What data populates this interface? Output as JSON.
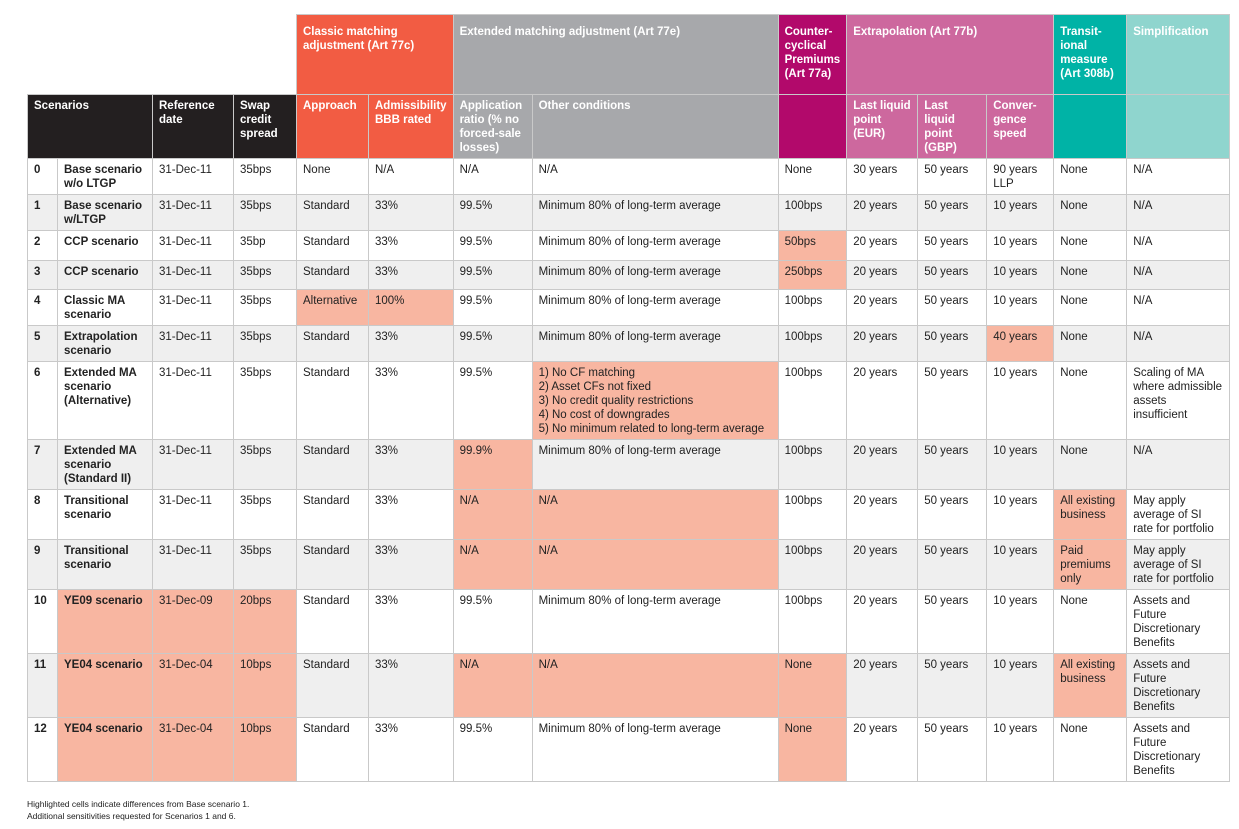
{
  "groups": {
    "classic": "Classic matching adjustment (Art 77c)",
    "extended": "Extended matching adjustment (Art 77e)",
    "ccp": "Counter-cyclical Premiums (Art 77a)",
    "extrapolation": "Extrapolation (Art 77b)",
    "transitional": "Transit-ional measure (Art 308b)",
    "simplification": "Simplification"
  },
  "columns": {
    "scenarios": "Scenarios",
    "reference_date": "Reference date",
    "swap_spread": "Swap credit spread",
    "approach": "Approach",
    "admissibility": "Admissibility BBB rated",
    "application_ratio": "Application ratio (% no forced-sale losses)",
    "other_conditions": "Other conditions",
    "llp_eur": "Last liquid point (EUR)",
    "llp_gbp": "Last liquid point (GBP)",
    "convergence": "Conver-gence speed"
  },
  "rows": [
    {
      "num": "0",
      "name": "Base scenario w/o LTGP",
      "date": "31-Dec-11",
      "spread": "35bps",
      "approach": "None",
      "bbb": "N/A",
      "ratio": "N/A",
      "other": "N/A",
      "ccp": "None",
      "eur": "30 years",
      "gbp": "50 years",
      "conv": "90 years LLP",
      "trans": "None",
      "simp": "N/A"
    },
    {
      "num": "1",
      "name": "Base scenario w/LTGP",
      "date": "31-Dec-11",
      "spread": "35bps",
      "approach": "Standard",
      "bbb": "33%",
      "ratio": "99.5%",
      "other": "Minimum 80% of long-term average",
      "ccp": "100bps",
      "eur": "20 years",
      "gbp": "50 years",
      "conv": "10 years",
      "trans": "None",
      "simp": "N/A"
    },
    {
      "num": "2",
      "name": "CCP scenario",
      "date": "31-Dec-11",
      "spread": "35bp",
      "approach": "Standard",
      "bbb": "33%",
      "ratio": "99.5%",
      "other": "Minimum 80% of long-term average",
      "ccp": "50bps",
      "eur": "20 years",
      "gbp": "50 years",
      "conv": "10 years",
      "trans": "None",
      "simp": "N/A"
    },
    {
      "num": "3",
      "name": "CCP scenario",
      "date": "31-Dec-11",
      "spread": "35bps",
      "approach": "Standard",
      "bbb": "33%",
      "ratio": "99.5%",
      "other": "Minimum 80% of long-term average",
      "ccp": "250bps",
      "eur": "20 years",
      "gbp": "50 years",
      "conv": "10 years",
      "trans": "None",
      "simp": "N/A"
    },
    {
      "num": "4",
      "name": "Classic MA scenario",
      "date": "31-Dec-11",
      "spread": "35bps",
      "approach": "Alternative",
      "bbb": "100%",
      "ratio": "99.5%",
      "other": "Minimum 80% of long-term average",
      "ccp": "100bps",
      "eur": "20 years",
      "gbp": "50 years",
      "conv": "10 years",
      "trans": "None",
      "simp": "N/A"
    },
    {
      "num": "5",
      "name": "Extrapolation scenario",
      "date": "31-Dec-11",
      "spread": "35bps",
      "approach": "Standard",
      "bbb": "33%",
      "ratio": "99.5%",
      "other": "Minimum 80% of long-term average",
      "ccp": "100bps",
      "eur": "20 years",
      "gbp": "50 years",
      "conv": "40 years",
      "trans": "None",
      "simp": "N/A"
    },
    {
      "num": "6",
      "name": "Extended MA scenario (Alternative)",
      "date": "31-Dec-11",
      "spread": "35bps",
      "approach": "Standard",
      "bbb": "33%",
      "ratio": "99.5%",
      "other": "1) No CF matching\n2) Asset CFs not fixed\n3) No credit quality restrictions\n4) No cost of downgrades\n5) No minimum related to long-term average",
      "ccp": "100bps",
      "eur": "20 years",
      "gbp": "50 years",
      "conv": "10 years",
      "trans": "None",
      "simp": "Scaling of MA where admissible assets insufficient"
    },
    {
      "num": "7",
      "name": "Extended MA scenario (Standard II)",
      "date": "31-Dec-11",
      "spread": "35bps",
      "approach": "Standard",
      "bbb": "33%",
      "ratio": "99.9%",
      "other": "Minimum 80% of long-term average",
      "ccp": "100bps",
      "eur": "20 years",
      "gbp": "50 years",
      "conv": "10 years",
      "trans": "None",
      "simp": "N/A"
    },
    {
      "num": "8",
      "name": "Transitional scenario",
      "date": "31-Dec-11",
      "spread": "35bps",
      "approach": "Standard",
      "bbb": "33%",
      "ratio": "N/A",
      "other": "N/A",
      "ccp": "100bps",
      "eur": "20 years",
      "gbp": "50 years",
      "conv": "10 years",
      "trans": "All existing business",
      "simp": "May apply average of SI rate for portfolio"
    },
    {
      "num": "9",
      "name": "Transitional scenario",
      "date": "31-Dec-11",
      "spread": "35bps",
      "approach": "Standard",
      "bbb": "33%",
      "ratio": "N/A",
      "other": "N/A",
      "ccp": "100bps",
      "eur": "20 years",
      "gbp": "50 years",
      "conv": "10 years",
      "trans": "Paid premiums only",
      "simp": "May apply average of SI rate for portfolio"
    },
    {
      "num": "10",
      "name": "YE09 scenario",
      "date": "31-Dec-09",
      "spread": "20bps",
      "approach": "Standard",
      "bbb": "33%",
      "ratio": "99.5%",
      "other": "Minimum 80% of long-term average",
      "ccp": "100bps",
      "eur": "20 years",
      "gbp": "50 years",
      "conv": "10 years",
      "trans": "None",
      "simp": "Assets and Future Discretionary Benefits"
    },
    {
      "num": "11",
      "name": "YE04 scenario",
      "date": "31-Dec-04",
      "spread": "10bps",
      "approach": "Standard",
      "bbb": "33%",
      "ratio": "N/A",
      "other": "N/A",
      "ccp": "None",
      "eur": "20 years",
      "gbp": "50 years",
      "conv": "10 years",
      "trans": "All existing business",
      "simp": "Assets and Future Discretionary Benefits"
    },
    {
      "num": "12",
      "name": "YE04 scenario",
      "date": "31-Dec-04",
      "spread": "10bps",
      "approach": "Standard",
      "bbb": "33%",
      "ratio": "99.5%",
      "other": "Minimum 80% of long-term average",
      "ccp": "None",
      "eur": "20 years",
      "gbp": "50 years",
      "conv": "10 years",
      "trans": "None",
      "simp": "Assets and Future Discretionary Benefits"
    }
  ],
  "footnotes": {
    "line1": "Highlighted cells indicate differences from Base scenario 1.",
    "line2": "Additional sensitivities requested for Scenarios 1 and 6."
  },
  "colors": {
    "classic": "#f25c43",
    "extended": "#a7a8ab",
    "ccp": "#b2096b",
    "extrapolation": "#cd689e",
    "transitional": "#00b3a6",
    "simplification": "#8fd5ce",
    "highlight": "#f8b6a1"
  }
}
